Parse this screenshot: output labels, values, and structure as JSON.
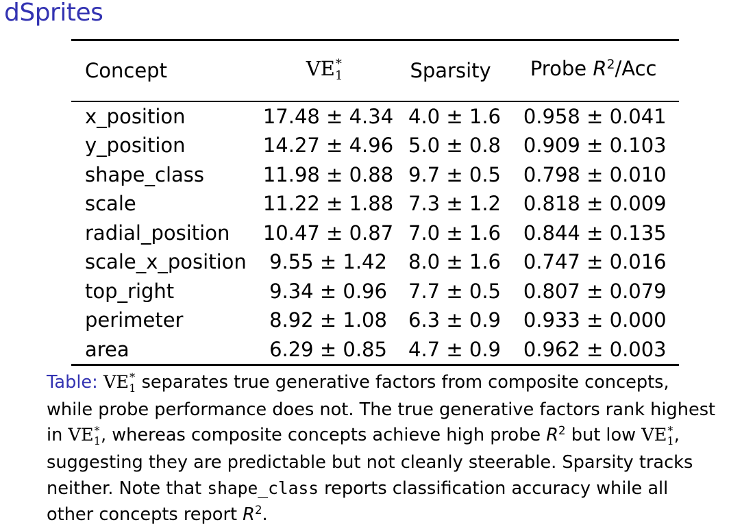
{
  "frame": {
    "title": "dSprites"
  },
  "table": {
    "columns": {
      "concept": "Concept",
      "ve_main": "VE",
      "ve_sup": "*",
      "ve_sub": "1",
      "sparsity": "Sparsity",
      "probe_prefix": "Probe ",
      "probe_r": "R",
      "probe_r_sup": "2",
      "probe_suffix": "/Acc"
    },
    "rows": [
      {
        "concept": "x_position",
        "ve": "17.48 ± 4.34",
        "sparsity": "4.0 ± 1.6",
        "probe": "0.958 ± 0.041"
      },
      {
        "concept": "y_position",
        "ve": "14.27 ± 4.96",
        "sparsity": "5.0 ± 0.8",
        "probe": "0.909 ± 0.103"
      },
      {
        "concept": "shape_class",
        "ve": "11.98 ± 0.88",
        "sparsity": "9.7 ± 0.5",
        "probe": "0.798 ± 0.010"
      },
      {
        "concept": "scale",
        "ve": "11.22 ± 1.88",
        "sparsity": "7.3 ± 1.2",
        "probe": "0.818 ± 0.009"
      },
      {
        "concept": "radial_position",
        "ve": "10.47 ± 0.87",
        "sparsity": "7.0 ± 1.6",
        "probe": "0.844 ± 0.135"
      },
      {
        "concept": "scale_x_position",
        "ve": "9.55 ± 1.42",
        "sparsity": "8.0 ± 1.6",
        "probe": "0.747 ± 0.016"
      },
      {
        "concept": "top_right",
        "ve": "9.34 ± 0.96",
        "sparsity": "7.7 ± 0.5",
        "probe": "0.807 ± 0.079"
      },
      {
        "concept": "perimeter",
        "ve": "8.92 ± 1.08",
        "sparsity": "6.3 ± 0.9",
        "probe": "0.933 ± 0.000"
      },
      {
        "concept": "area",
        "ve": "6.29 ± 0.85",
        "sparsity": "4.7 ± 0.9",
        "probe": "0.962 ± 0.003"
      }
    ]
  },
  "caption": {
    "label": "Table:",
    "ve": "VE",
    "ve_sup": "*",
    "ve_sub": "1",
    "part1": " separates true generative factors from composite concepts, while probe performance does not. The true generative factors rank highest in ",
    "part2": ", whereas composite concepts achieve high probe ",
    "r": "R",
    "r_sup": "2",
    "part3": " but low ",
    "part4": ", suggesting they are predictable but not cleanly steerable. Sparsity tracks neither. Note that ",
    "code": "shape_class",
    "part5": " reports classification accuracy while all other concepts report ",
    "part6": "."
  },
  "colors": {
    "title": "#3333b2",
    "caption_label": "#3333b2"
  }
}
